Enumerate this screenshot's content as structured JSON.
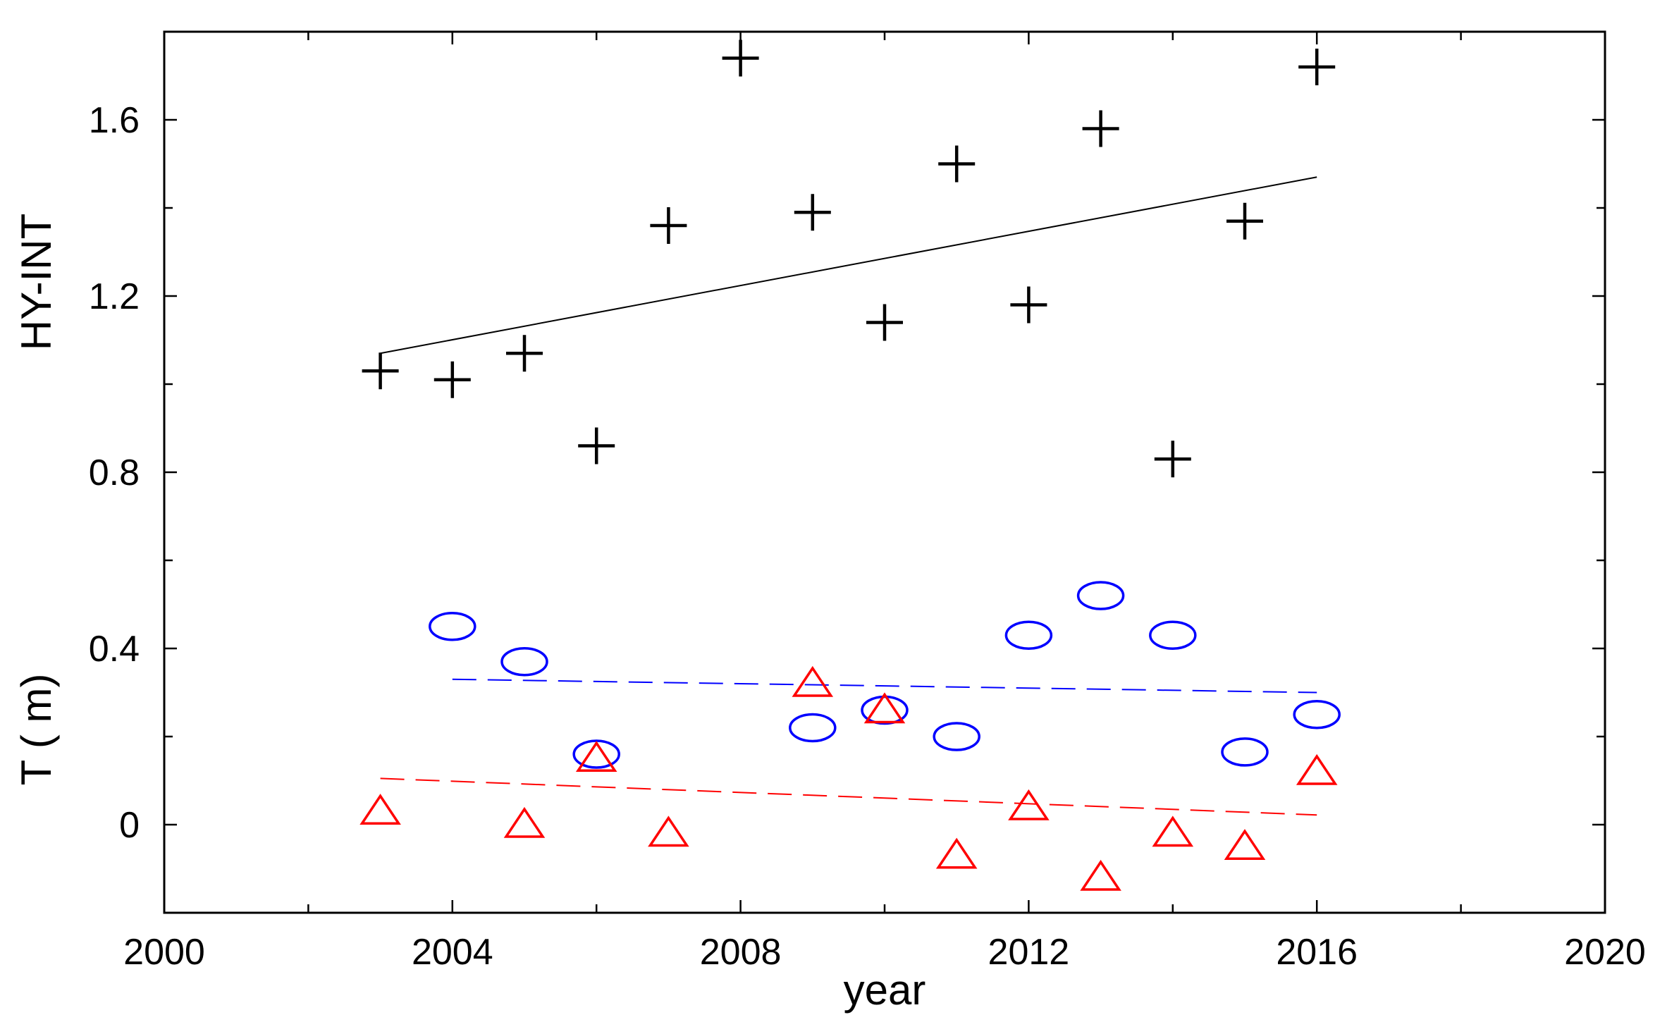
{
  "chart_data": {
    "type": "scatter",
    "xlabel": "year",
    "ylabel_upper": "HY-INT",
    "ylabel_lower": "T ( m)",
    "xlim": [
      2000,
      2020
    ],
    "ylim": [
      -0.2,
      1.8
    ],
    "x_ticks": [
      2000,
      2004,
      2008,
      2012,
      2016,
      2020
    ],
    "x_tick_labels": [
      "2000",
      "2004",
      "2008",
      "2012",
      "2016",
      "2020"
    ],
    "y_ticks": [
      0,
      0.4,
      0.8,
      1.2,
      1.6
    ],
    "y_tick_labels": [
      "0",
      "0.4",
      "0.8",
      "1.2",
      "1.6"
    ],
    "grid": false,
    "series": [
      {
        "marker": "plus",
        "color": "#000000",
        "points": [
          [
            2003,
            1.03
          ],
          [
            2004,
            1.01
          ],
          [
            2005,
            1.07
          ],
          [
            2006,
            0.86
          ],
          [
            2007,
            1.36
          ],
          [
            2008,
            1.74
          ],
          [
            2009,
            1.39
          ],
          [
            2010,
            1.14
          ],
          [
            2011,
            1.5
          ],
          [
            2012,
            1.18
          ],
          [
            2013,
            1.58
          ],
          [
            2014,
            0.83
          ],
          [
            2015,
            1.37
          ],
          [
            2016,
            1.72
          ]
        ],
        "trend": {
          "x": [
            2003,
            2016
          ],
          "y": [
            1.07,
            1.47
          ],
          "style": "solid"
        }
      },
      {
        "marker": "circle",
        "color": "#0000ff",
        "points": [
          [
            2004,
            0.45
          ],
          [
            2005,
            0.37
          ],
          [
            2006,
            0.16
          ],
          [
            2009,
            0.22
          ],
          [
            2010,
            0.26
          ],
          [
            2011,
            0.2
          ],
          [
            2012,
            0.43
          ],
          [
            2013,
            0.52
          ],
          [
            2014,
            0.43
          ],
          [
            2015,
            0.165
          ],
          [
            2016,
            0.25
          ]
        ],
        "trend": {
          "x": [
            2004,
            2016
          ],
          "y": [
            0.33,
            0.3
          ],
          "style": "dashed"
        }
      },
      {
        "marker": "triangle",
        "color": "#ff0000",
        "points": [
          [
            2003,
            0.03
          ],
          [
            2005,
            0.0
          ],
          [
            2006,
            0.15
          ],
          [
            2007,
            -0.02
          ],
          [
            2009,
            0.32
          ],
          [
            2010,
            0.26
          ],
          [
            2011,
            -0.07
          ],
          [
            2012,
            0.04
          ],
          [
            2013,
            -0.12
          ],
          [
            2014,
            -0.02
          ],
          [
            2015,
            -0.05
          ],
          [
            2016,
            0.12
          ]
        ],
        "trend": {
          "x": [
            2003,
            2016
          ],
          "y": [
            0.105,
            0.022
          ],
          "style": "dashed"
        }
      }
    ]
  }
}
